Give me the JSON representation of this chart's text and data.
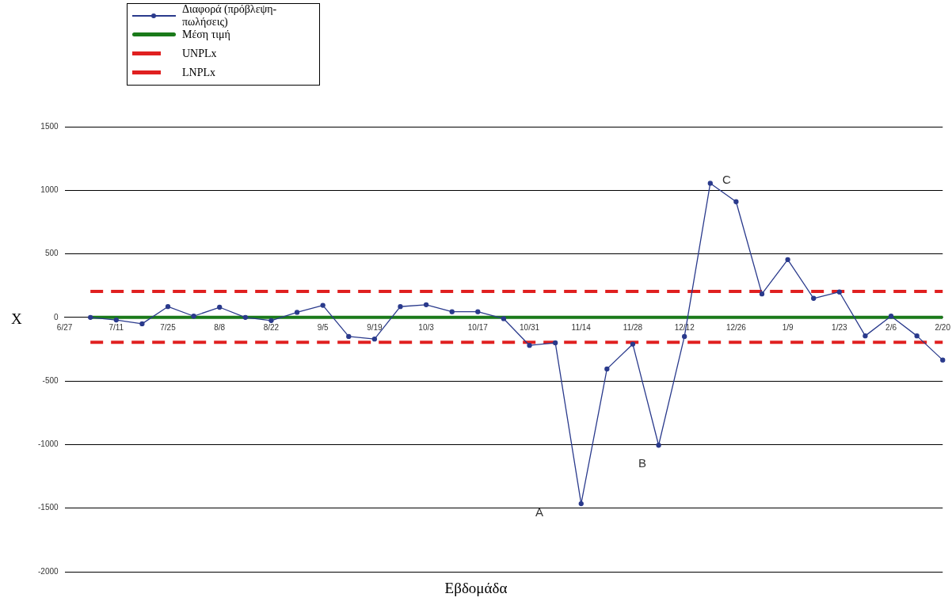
{
  "chart_data": {
    "type": "line",
    "xlabel": "Εβδομάδα",
    "ylabel": "X",
    "categories": [
      "6/27",
      null,
      "7/11",
      null,
      "7/25",
      null,
      "8/8",
      null,
      "8/22",
      null,
      "9/5",
      null,
      "9/19",
      null,
      "10/3",
      null,
      "10/17",
      null,
      "10/31",
      null,
      "11/14",
      null,
      "11/28",
      null,
      "12/12",
      null,
      "12/26",
      null,
      "1/9",
      null,
      "1/23",
      null,
      "2/6",
      null,
      "2/20"
    ],
    "series": [
      {
        "name": "Διαφορά (πρόβλεψη-πωλήσεις)",
        "color": "#2a3a8c",
        "marker": "circle",
        "line_style": "solid",
        "values": [
          null,
          0,
          -20,
          -50,
          85,
          10,
          80,
          0,
          -25,
          40,
          95,
          -150,
          -170,
          85,
          100,
          45,
          45,
          -10,
          -220,
          -200,
          -1465,
          -405,
          -210,
          -1005,
          -150,
          1055,
          910,
          185,
          455,
          150,
          200,
          -145,
          10,
          -145,
          -335
        ]
      },
      {
        "name": "Μέση τιμή",
        "color": "#1a7a1a",
        "marker": "none",
        "line_style": "solid",
        "values": [
          null,
          0,
          0,
          0,
          0,
          0,
          0,
          0,
          0,
          0,
          0,
          0,
          0,
          0,
          0,
          0,
          0,
          0,
          0,
          0,
          0,
          0,
          0,
          0,
          0,
          0,
          0,
          0,
          0,
          0,
          0,
          0,
          0,
          0,
          0
        ]
      },
      {
        "name": "UNPLx",
        "color": "#e02020",
        "marker": "none",
        "line_style": "dashed",
        "values": [
          null,
          205,
          205,
          205,
          205,
          205,
          205,
          205,
          205,
          205,
          205,
          205,
          205,
          205,
          205,
          205,
          205,
          205,
          205,
          205,
          205,
          205,
          205,
          205,
          205,
          205,
          205,
          205,
          205,
          205,
          205,
          205,
          205,
          205,
          205
        ]
      },
      {
        "name": "LNPLx",
        "color": "#e02020",
        "marker": "none",
        "line_style": "dashed",
        "values": [
          null,
          -195,
          -195,
          -195,
          -195,
          -195,
          -195,
          -195,
          -195,
          -195,
          -195,
          -195,
          -195,
          -195,
          -195,
          -195,
          -195,
          -195,
          -195,
          -195,
          -195,
          -195,
          -195,
          -195,
          -195,
          -195,
          -195,
          -195,
          -195,
          -195,
          -195,
          -195,
          -195,
          -195,
          -195
        ]
      }
    ],
    "annotations": [
      "A",
      "B",
      "C"
    ],
    "ylim": [
      -2000,
      1500
    ],
    "yticks": [
      -2000,
      -1500,
      -1000,
      -500,
      0,
      500,
      1000,
      1500
    ],
    "grid": "y",
    "legend": "top left"
  }
}
